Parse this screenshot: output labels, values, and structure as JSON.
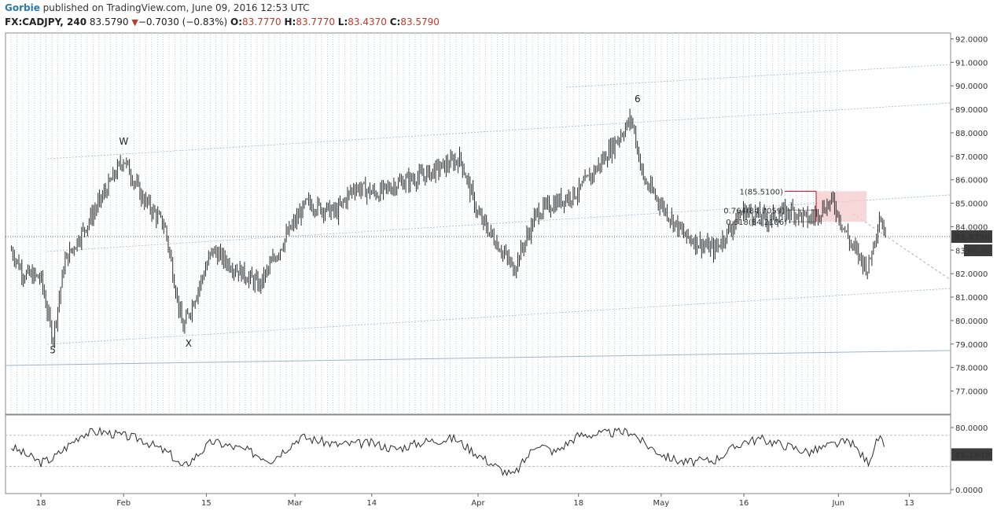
{
  "header": {
    "author": "Gorbie",
    "published": " published on TradingView.com, June 09, 2016 12:53 UTC",
    "symbol": "FX:CADJPY, 240",
    "last": "83.5790",
    "down_arrow": "▼",
    "change": "−0.7030 (−0.83%)",
    "o_label": "O:",
    "o_val": "83.7770",
    "h_label": "H:",
    "h_val": "83.7770",
    "l_label": "L:",
    "l_val": "83.4370",
    "c_label": "C:",
    "c_val": "83.5790"
  },
  "colors": {
    "candle": "#2b2b2b",
    "grid_vertical": "#5b9bd5",
    "channel": "#9fb3cc",
    "fib_red": "#d0021b",
    "fib_gray": "#999999",
    "target_zone": "#f6c9cc",
    "price_label_bg": "#3c3c3c"
  },
  "chart_data": [
    {
      "type": "line",
      "subtype": "candlestick",
      "symbol": "FX:CADJPY",
      "interval": "240",
      "x_tick_labels": [
        "18",
        "Feb",
        "15",
        "Mar",
        "14",
        "Apr",
        "18",
        "May",
        "16",
        "Jun",
        "13"
      ],
      "ylim": [
        76.0,
        92.3
      ],
      "y_tick_labels": [
        "77.0000",
        "78.0000",
        "79.0000",
        "80.0000",
        "81.0000",
        "82.0000",
        "83.0000",
        "84.0000",
        "85.0000",
        "86.0000",
        "87.0000",
        "88.0000",
        "89.0000",
        "90.0000",
        "91.0000",
        "92.0000"
      ],
      "y_ticks": [
        77,
        78,
        79,
        80,
        81,
        82,
        83,
        84,
        85,
        86,
        87,
        88,
        89,
        90,
        91,
        92
      ],
      "last_price_label": "83.5790",
      "countdown_label": "06:26",
      "last_price": 83.579,
      "series": [
        {
          "x": [
            "2016-01-13",
            "2016-01-15",
            "2016-01-18",
            "2016-01-20",
            "2016-01-22",
            "2016-01-26",
            "2016-02-01",
            "2016-02-04",
            "2016-02-08",
            "2016-02-11",
            "2016-02-16",
            "2016-02-19",
            "2016-02-24",
            "2016-02-29",
            "2016-03-03",
            "2016-03-08",
            "2016-03-11",
            "2016-03-15",
            "2016-03-18",
            "2016-03-23",
            "2016-03-29",
            "2016-04-01",
            "2016-04-05",
            "2016-04-07",
            "2016-04-11",
            "2016-04-14",
            "2016-04-18",
            "2016-04-22",
            "2016-04-27",
            "2016-04-29",
            "2016-05-03",
            "2016-05-06",
            "2016-05-11",
            "2016-05-16",
            "2016-05-20",
            "2016-05-24",
            "2016-05-27",
            "2016-05-31",
            "2016-06-03",
            "2016-06-06",
            "2016-06-08",
            "2016-06-09"
          ],
          "values": [
            83.0,
            82.0,
            81.8,
            79.2,
            82.5,
            84.2,
            86.9,
            85.3,
            84.0,
            79.6,
            83.0,
            82.4,
            81.5,
            83.8,
            85.0,
            84.6,
            85.7,
            85.4,
            85.8,
            86.2,
            86.9,
            84.5,
            83.0,
            82.2,
            84.6,
            85.0,
            85.5,
            86.8,
            88.6,
            86.0,
            84.6,
            83.6,
            83.0,
            84.7,
            84.3,
            84.7,
            84.3,
            85.1,
            83.3,
            82.2,
            84.5,
            83.579
          ]
        }
      ],
      "annotations": [
        {
          "text": "5",
          "x": "2016-01-20",
          "y": 78.6
        },
        {
          "text": "W",
          "x": "2016-02-01",
          "y": 87.5
        },
        {
          "text": "X",
          "x": "2016-02-12",
          "y": 78.9
        },
        {
          "text": "6",
          "x": "2016-04-28",
          "y": 89.3
        }
      ],
      "fib_levels": [
        {
          "label": "1(85.5100)",
          "value": 85.51
        },
        {
          "label": "0.764(84.7059)",
          "value": 84.7059
        },
        {
          "label": "0.618(84.2106)",
          "value": 84.2106
        }
      ]
    },
    {
      "type": "line",
      "subtype": "oscillator",
      "ylim": [
        0,
        100
      ],
      "y_tick_labels": [
        "80.0000",
        "0.0000"
      ],
      "y_ticks": [
        80,
        0
      ],
      "current_label": "45.1649",
      "current_value": 45.1649,
      "levels": [
        70,
        30
      ],
      "series": [
        {
          "x": [
            "2016-01-13",
            "2016-01-18",
            "2016-01-20",
            "2016-01-25",
            "2016-01-28",
            "2016-02-04",
            "2016-02-09",
            "2016-02-11",
            "2016-02-16",
            "2016-02-22",
            "2016-02-26",
            "2016-03-02",
            "2016-03-08",
            "2016-03-14",
            "2016-03-18",
            "2016-03-23",
            "2016-03-28",
            "2016-04-01",
            "2016-04-05",
            "2016-04-07",
            "2016-04-11",
            "2016-04-14",
            "2016-04-18",
            "2016-04-22",
            "2016-04-27",
            "2016-04-29",
            "2016-05-03",
            "2016-05-06",
            "2016-05-11",
            "2016-05-16",
            "2016-05-19",
            "2016-05-24",
            "2016-05-27",
            "2016-05-31",
            "2016-06-03",
            "2016-06-06",
            "2016-06-08",
            "2016-06-09"
          ],
          "values": [
            55,
            35,
            40,
            72,
            75,
            65,
            45,
            28,
            62,
            50,
            38,
            68,
            58,
            60,
            52,
            62,
            66,
            45,
            25,
            18,
            60,
            48,
            70,
            72,
            75,
            60,
            42,
            35,
            38,
            62,
            65,
            55,
            48,
            58,
            62,
            35,
            70,
            45.1649
          ]
        }
      ]
    }
  ]
}
